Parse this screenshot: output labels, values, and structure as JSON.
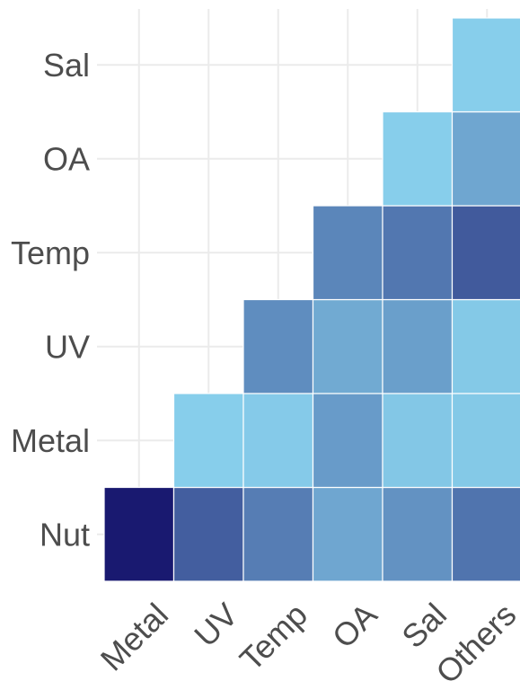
{
  "chart_data": {
    "type": "heatmap",
    "title": "",
    "xlabel": "",
    "ylabel": "",
    "x_categories": [
      "Metal",
      "UV",
      "Temp",
      "OA",
      "Sal",
      "Others"
    ],
    "y_categories": [
      "Nut",
      "Metal",
      "UV",
      "Temp",
      "OA",
      "Sal"
    ],
    "grid": true,
    "legend": "none",
    "color_scale": {
      "low": "#87ceeb",
      "high": "#191970"
    },
    "cells": [
      {
        "x": "Metal",
        "y": "Nut",
        "value": 1.0
      },
      {
        "x": "UV",
        "y": "Nut",
        "value": 0.62
      },
      {
        "x": "Temp",
        "y": "Nut",
        "value": 0.45
      },
      {
        "x": "OA",
        "y": "Nut",
        "value": 0.22
      },
      {
        "x": "Sal",
        "y": "Nut",
        "value": 0.33
      },
      {
        "x": "Others",
        "y": "Nut",
        "value": 0.5
      },
      {
        "x": "UV",
        "y": "Metal",
        "value": 0.0
      },
      {
        "x": "Temp",
        "y": "Metal",
        "value": 0.02
      },
      {
        "x": "OA",
        "y": "Metal",
        "value": 0.28
      },
      {
        "x": "Sal",
        "y": "Metal",
        "value": 0.04
      },
      {
        "x": "Others",
        "y": "Metal",
        "value": 0.03
      },
      {
        "x": "Temp",
        "y": "UV",
        "value": 0.36
      },
      {
        "x": "OA",
        "y": "UV",
        "value": 0.2
      },
      {
        "x": "Sal",
        "y": "UV",
        "value": 0.26
      },
      {
        "x": "Others",
        "y": "UV",
        "value": 0.03
      },
      {
        "x": "OA",
        "y": "Temp",
        "value": 0.4
      },
      {
        "x": "Sal",
        "y": "Temp",
        "value": 0.48
      },
      {
        "x": "Others",
        "y": "Temp",
        "value": 0.64
      },
      {
        "x": "Sal",
        "y": "OA",
        "value": 0.0
      },
      {
        "x": "Others",
        "y": "OA",
        "value": 0.22
      },
      {
        "x": "Others",
        "y": "Sal",
        "value": 0.0
      }
    ]
  }
}
